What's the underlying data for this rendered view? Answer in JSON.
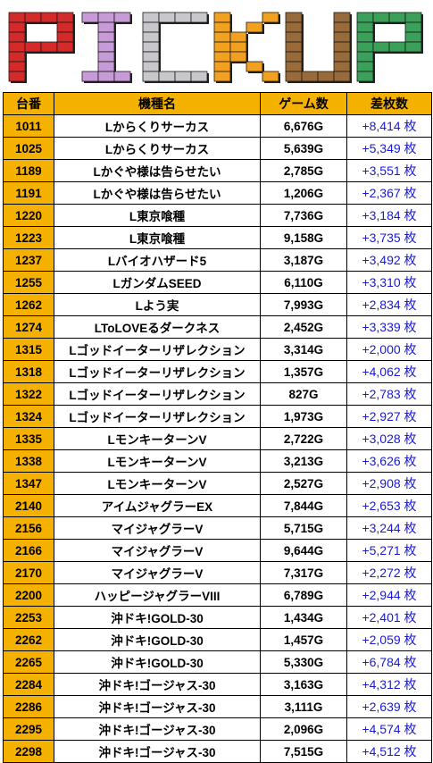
{
  "banner": {
    "title": "PICKUP"
  },
  "table": {
    "headers": [
      "台番",
      "機種名",
      "ゲーム数",
      "差枚数"
    ],
    "rows": [
      {
        "no": "1011",
        "name": "Lからくりサーカス",
        "games": "6,676G",
        "diff": "+8,414 枚"
      },
      {
        "no": "1025",
        "name": "Lからくりサーカス",
        "games": "5,639G",
        "diff": "+5,349 枚"
      },
      {
        "no": "1189",
        "name": "Lかぐや様は告らせたい",
        "games": "2,785G",
        "diff": "+3,551 枚"
      },
      {
        "no": "1191",
        "name": "Lかぐや様は告らせたい",
        "games": "1,206G",
        "diff": "+2,367 枚"
      },
      {
        "no": "1220",
        "name": "L東京喰種",
        "games": "7,736G",
        "diff": "+3,184 枚"
      },
      {
        "no": "1223",
        "name": "L東京喰種",
        "games": "9,158G",
        "diff": "+3,735 枚"
      },
      {
        "no": "1237",
        "name": "Lバイオハザード5",
        "games": "3,187G",
        "diff": "+3,492 枚"
      },
      {
        "no": "1255",
        "name": "LガンダムSEED",
        "games": "6,110G",
        "diff": "+3,310 枚"
      },
      {
        "no": "1262",
        "name": "Lよう実",
        "games": "7,993G",
        "diff": "+2,834 枚"
      },
      {
        "no": "1274",
        "name": "LToLOVEるダークネス",
        "games": "2,452G",
        "diff": "+3,339 枚"
      },
      {
        "no": "1315",
        "name": "Lゴッドイーターリザレクション",
        "games": "3,314G",
        "diff": "+2,000 枚"
      },
      {
        "no": "1318",
        "name": "Lゴッドイーターリザレクション",
        "games": "1,357G",
        "diff": "+4,062 枚"
      },
      {
        "no": "1322",
        "name": "Lゴッドイーターリザレクション",
        "games": "827G",
        "diff": "+2,783 枚"
      },
      {
        "no": "1324",
        "name": "Lゴッドイーターリザレクション",
        "games": "1,973G",
        "diff": "+2,927 枚"
      },
      {
        "no": "1335",
        "name": "LモンキーターンV",
        "games": "2,722G",
        "diff": "+3,028 枚"
      },
      {
        "no": "1338",
        "name": "LモンキーターンV",
        "games": "3,213G",
        "diff": "+3,626 枚"
      },
      {
        "no": "1347",
        "name": "LモンキーターンV",
        "games": "2,527G",
        "diff": "+2,908 枚"
      },
      {
        "no": "2140",
        "name": "アイムジャグラーEX",
        "games": "7,844G",
        "diff": "+2,653 枚"
      },
      {
        "no": "2156",
        "name": "マイジャグラーV",
        "games": "5,715G",
        "diff": "+3,244 枚"
      },
      {
        "no": "2166",
        "name": "マイジャグラーV",
        "games": "9,644G",
        "diff": "+5,271 枚"
      },
      {
        "no": "2170",
        "name": "マイジャグラーV",
        "games": "7,317G",
        "diff": "+2,272 枚"
      },
      {
        "no": "2200",
        "name": "ハッピージャグラーVIII",
        "games": "6,789G",
        "diff": "+2,944 枚"
      },
      {
        "no": "2253",
        "name": "沖ドキ!GOLD-30",
        "games": "1,434G",
        "diff": "+2,401 枚"
      },
      {
        "no": "2262",
        "name": "沖ドキ!GOLD-30",
        "games": "1,457G",
        "diff": "+2,059 枚"
      },
      {
        "no": "2265",
        "name": "沖ドキ!GOLD-30",
        "games": "5,330G",
        "diff": "+6,784 枚"
      },
      {
        "no": "2284",
        "name": "沖ドキ!ゴージャス-30",
        "games": "3,163G",
        "diff": "+4,312 枚"
      },
      {
        "no": "2286",
        "name": "沖ドキ!ゴージャス-30",
        "games": "3,111G",
        "diff": "+2,639 枚"
      },
      {
        "no": "2295",
        "name": "沖ドキ!ゴージャス-30",
        "games": "2,096G",
        "diff": "+4,574 枚"
      },
      {
        "no": "2298",
        "name": "沖ドキ!ゴージャス-30",
        "games": "7,515G",
        "diff": "+4,512 枚"
      }
    ]
  },
  "colors": {
    "header_bg": "#f5b100",
    "diff_text": "#1a1ad6",
    "letter_p": "#d42a2a",
    "letter_i": "#c79ad8",
    "letter_c": "#c8c8cc",
    "letter_k": "#f2a020",
    "letter_u": "#9a6b3a",
    "letter_p2": "#3aa05a"
  }
}
